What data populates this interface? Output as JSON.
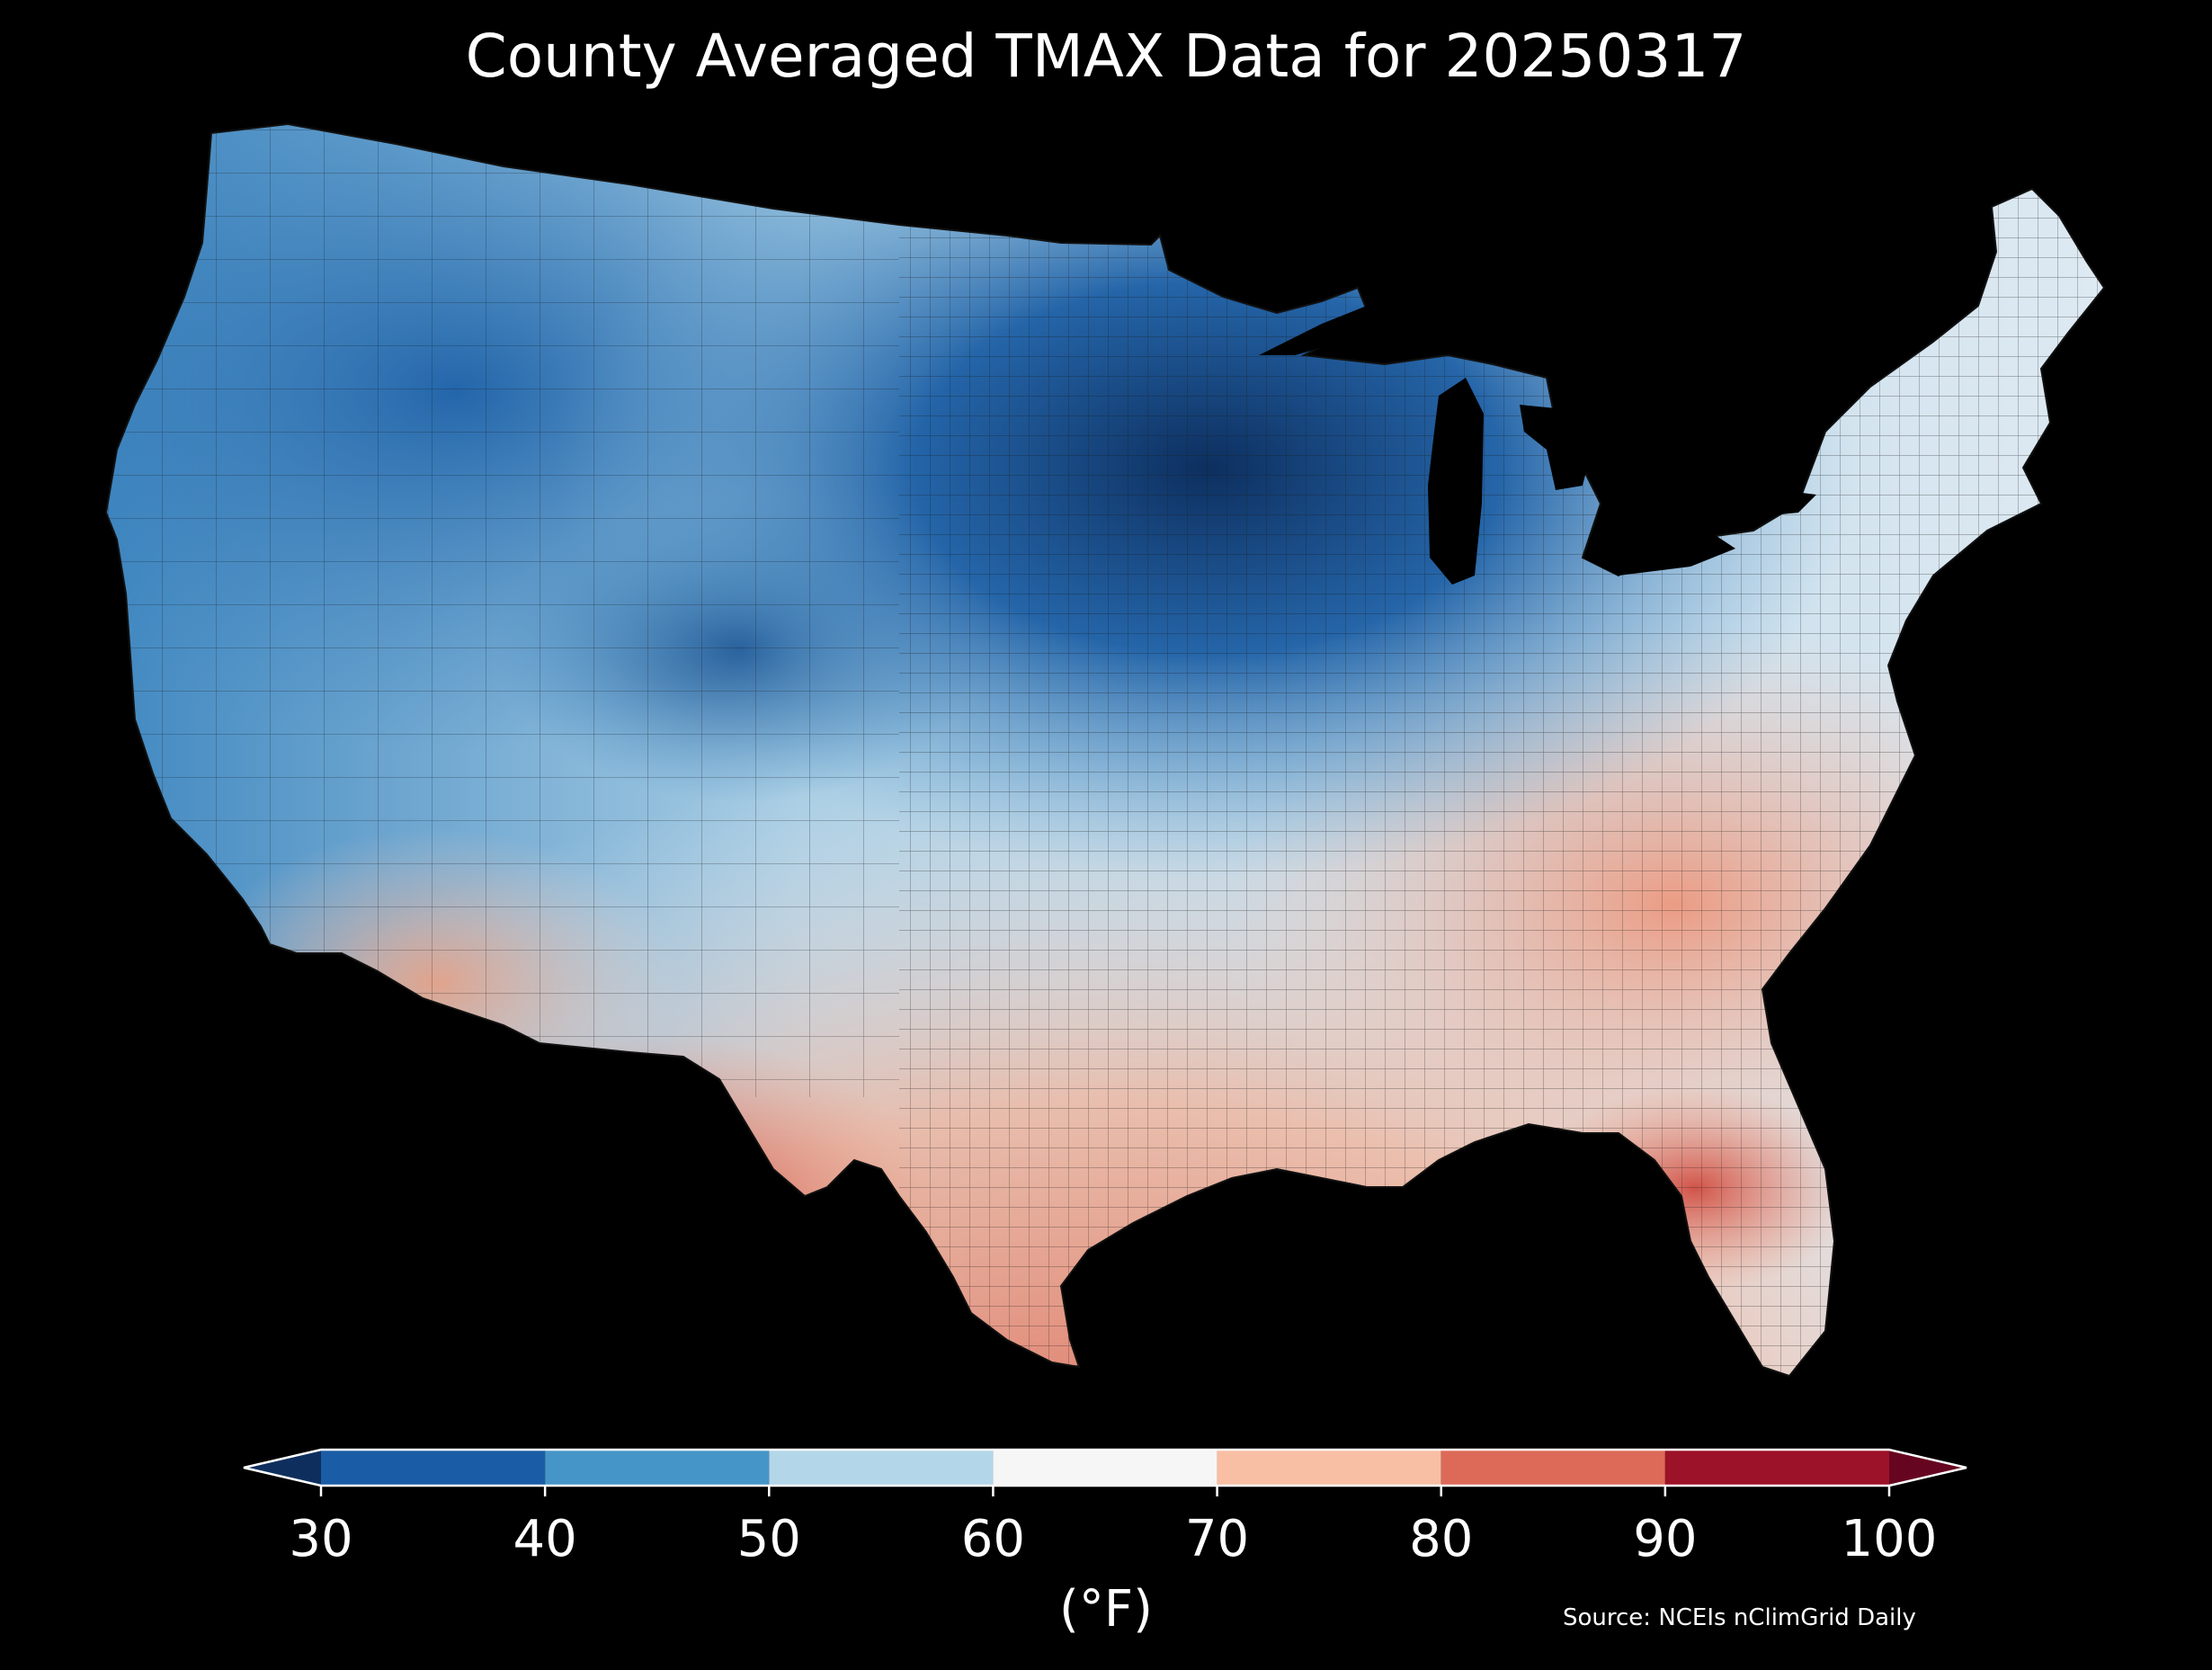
{
  "title": "County Averaged TMAX Data for 20250317",
  "colorbar": {
    "unit_label": "(°F)",
    "ticks": [
      "30",
      "40",
      "50",
      "60",
      "70",
      "80",
      "90",
      "100"
    ],
    "bins": [
      {
        "from": 30,
        "to": 40,
        "color": "#1a5da6"
      },
      {
        "from": 40,
        "to": 50,
        "color": "#4695c8"
      },
      {
        "from": 50,
        "to": 60,
        "color": "#b4d6e9"
      },
      {
        "from": 60,
        "to": 70,
        "color": "#f6f6f6"
      },
      {
        "from": 70,
        "to": 80,
        "color": "#f8bfa4"
      },
      {
        "from": 80,
        "to": 90,
        "color": "#dd6a58"
      },
      {
        "from": 90,
        "to": 100,
        "color": "#9c1228"
      }
    ],
    "under_color": "#0e2f5e",
    "over_color": "#660520"
  },
  "source": "Source: NCEIs nClimGrid Daily",
  "map": {
    "region": "contiguous-united-states",
    "background_color": "#000000",
    "border_color": "#1a1a1a"
  }
}
